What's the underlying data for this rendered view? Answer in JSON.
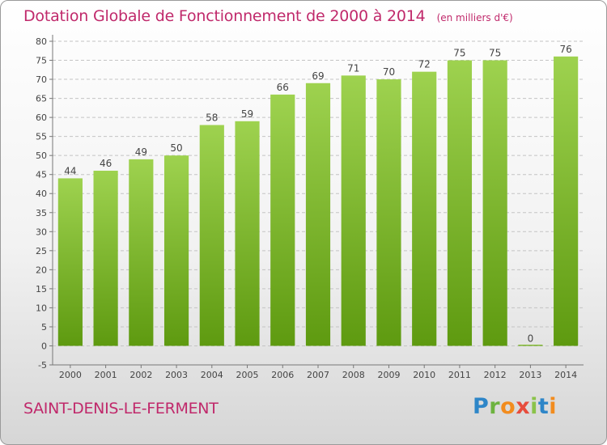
{
  "chart_data": {
    "type": "bar",
    "title": "Dotation Globale de Fonctionnement de 2000 à 2014",
    "unit_note": "(en milliers d'€)",
    "categories": [
      "2000",
      "2001",
      "2002",
      "2003",
      "2004",
      "2005",
      "2006",
      "2007",
      "2008",
      "2009",
      "2010",
      "2011",
      "2012",
      "2013",
      "2014"
    ],
    "values": [
      44,
      46,
      49,
      50,
      58,
      59,
      66,
      69,
      71,
      70,
      72,
      75,
      75,
      0,
      76
    ],
    "ylim": [
      -5,
      80
    ],
    "yticks": [
      -5,
      0,
      5,
      10,
      15,
      20,
      25,
      30,
      35,
      40,
      45,
      50,
      55,
      60,
      65,
      70,
      75,
      80
    ],
    "grid": true,
    "colors": {
      "bar_top": "#9ed24f",
      "bar_bottom": "#5e9a10",
      "title": "#c0296b",
      "grid": "#c4c4c4"
    }
  },
  "footer": {
    "commune": "SAINT-DENIS-LE-FERMENT"
  },
  "brand": {
    "letters": [
      {
        "char": "P",
        "color": "#2e86c8"
      },
      {
        "char": "r",
        "color": "#6db33f"
      },
      {
        "char": "o",
        "color": "#f28c1e"
      },
      {
        "char": "x",
        "color": "#e74c3c"
      },
      {
        "char": "i",
        "color": "#8bc34a"
      },
      {
        "char": "t",
        "color": "#2e86c8"
      },
      {
        "char": "i",
        "color": "#f28c1e"
      }
    ]
  }
}
